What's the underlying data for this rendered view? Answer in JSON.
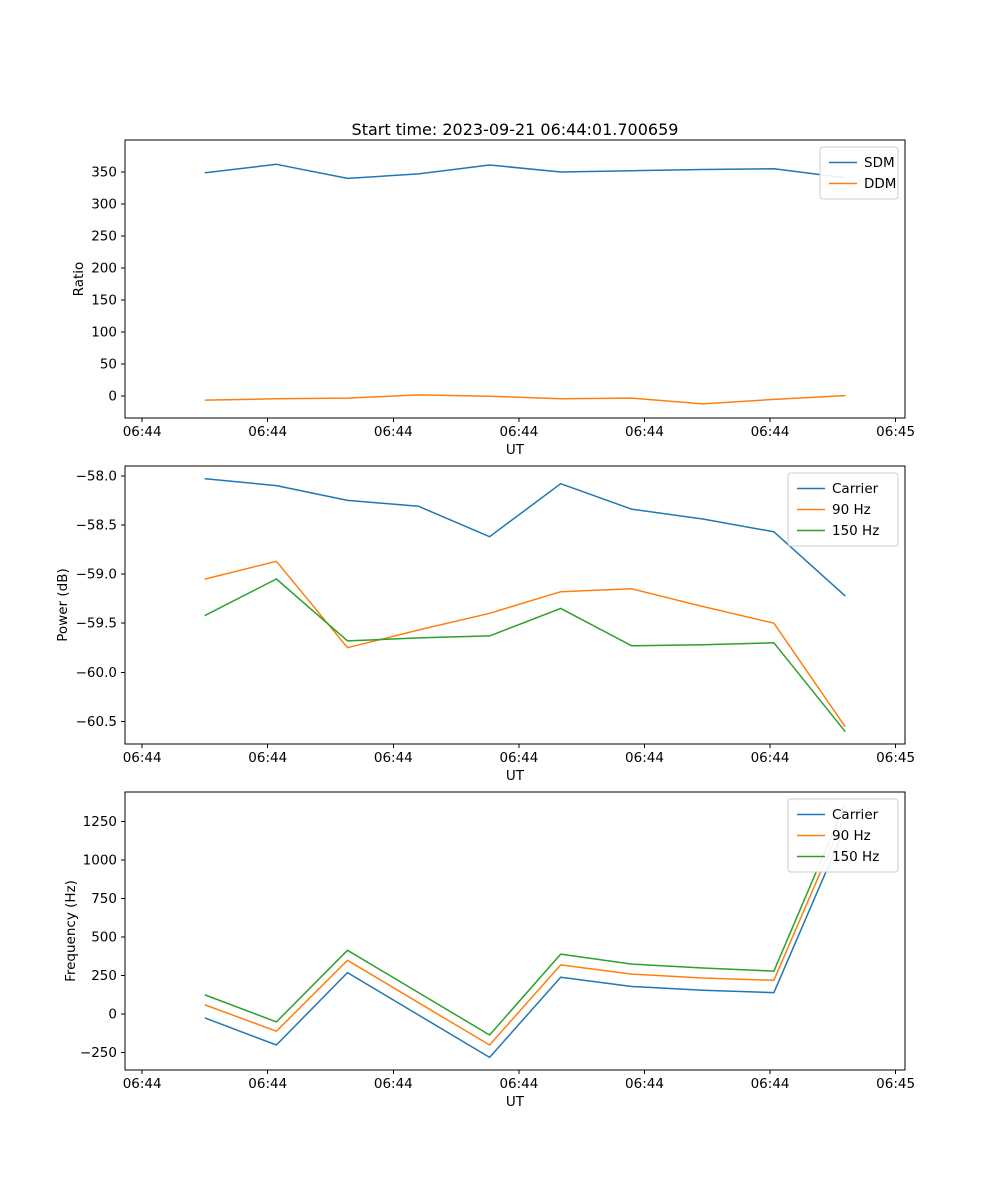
{
  "title": "Start time: 2023-09-21 06:44:01.700659",
  "colors": {
    "blue": "#1f77b4",
    "orange": "#ff7f0e",
    "green": "#2ca02c"
  },
  "chart_data": [
    {
      "type": "line",
      "name": "ratio",
      "xlabel": "UT",
      "ylabel": "Ratio",
      "x_tick_labels": [
        "06:44",
        "06:44",
        "06:44",
        "06:44",
        "06:44",
        "06:44",
        "06:45"
      ],
      "y_ticks": [
        0,
        50,
        100,
        150,
        200,
        250,
        300,
        350
      ],
      "y_tick_labels": [
        "0",
        "50",
        "100",
        "150",
        "200",
        "250",
        "300",
        "350"
      ],
      "ylim": [
        -34,
        400
      ],
      "grid": false,
      "legend_position": "upper right",
      "series": [
        {
          "name": "SDM",
          "color": "blue",
          "values": [
            349,
            362,
            340,
            347,
            361,
            350,
            352,
            354,
            355,
            341
          ]
        },
        {
          "name": "DDM",
          "color": "orange",
          "values": [
            -6,
            -4,
            -3,
            2,
            0,
            -4,
            -3,
            -12,
            -5,
            1
          ]
        }
      ]
    },
    {
      "type": "line",
      "name": "power",
      "xlabel": "UT",
      "ylabel": "Power (dB)",
      "x_tick_labels": [
        "06:44",
        "06:44",
        "06:44",
        "06:44",
        "06:44",
        "06:44",
        "06:45"
      ],
      "y_ticks": [
        -58.0,
        -58.5,
        -59.0,
        -59.5,
        -60.0,
        -60.5
      ],
      "y_tick_labels": [
        "−58.0",
        "−58.5",
        "−59.0",
        "−59.5",
        "−60.0",
        "−60.5"
      ],
      "ylim": [
        -60.73,
        -57.9
      ],
      "grid": false,
      "legend_position": "upper right",
      "series": [
        {
          "name": "Carrier",
          "color": "blue",
          "values": [
            -58.03,
            -58.1,
            -58.25,
            -58.31,
            -58.62,
            -58.08,
            -58.34,
            -58.44,
            -58.57,
            -59.22
          ]
        },
        {
          "name": "90 Hz",
          "color": "orange",
          "values": [
            -59.05,
            -58.87,
            -59.75,
            -59.57,
            -59.4,
            -59.18,
            -59.15,
            -59.33,
            -59.5,
            -60.55
          ]
        },
        {
          "name": "150 Hz",
          "color": "green",
          "values": [
            -59.42,
            -59.05,
            -59.68,
            -59.65,
            -59.63,
            -59.35,
            -59.73,
            -59.72,
            -59.7,
            -60.6
          ]
        }
      ]
    },
    {
      "type": "line",
      "name": "frequency",
      "xlabel": "UT",
      "ylabel": "Frequency (Hz)",
      "x_tick_labels": [
        "06:44",
        "06:44",
        "06:44",
        "06:44",
        "06:44",
        "06:44",
        "06:45"
      ],
      "y_ticks": [
        -250,
        0,
        250,
        500,
        750,
        1000,
        1250
      ],
      "y_tick_labels": [
        "−250",
        "0",
        "250",
        "500",
        "750",
        "1000",
        "1250"
      ],
      "ylim": [
        -362,
        1442
      ],
      "grid": false,
      "legend_position": "upper right",
      "series": [
        {
          "name": "Carrier",
          "color": "blue",
          "values": [
            -25,
            -200,
            270,
            -5,
            -280,
            240,
            180,
            155,
            140,
            1210
          ]
        },
        {
          "name": "90 Hz",
          "color": "orange",
          "values": [
            60,
            -110,
            350,
            75,
            -200,
            320,
            260,
            235,
            220,
            1290
          ]
        },
        {
          "name": "150 Hz",
          "color": "green",
          "values": [
            125,
            -50,
            415,
            140,
            -135,
            390,
            325,
            300,
            280,
            1360
          ]
        }
      ]
    }
  ]
}
